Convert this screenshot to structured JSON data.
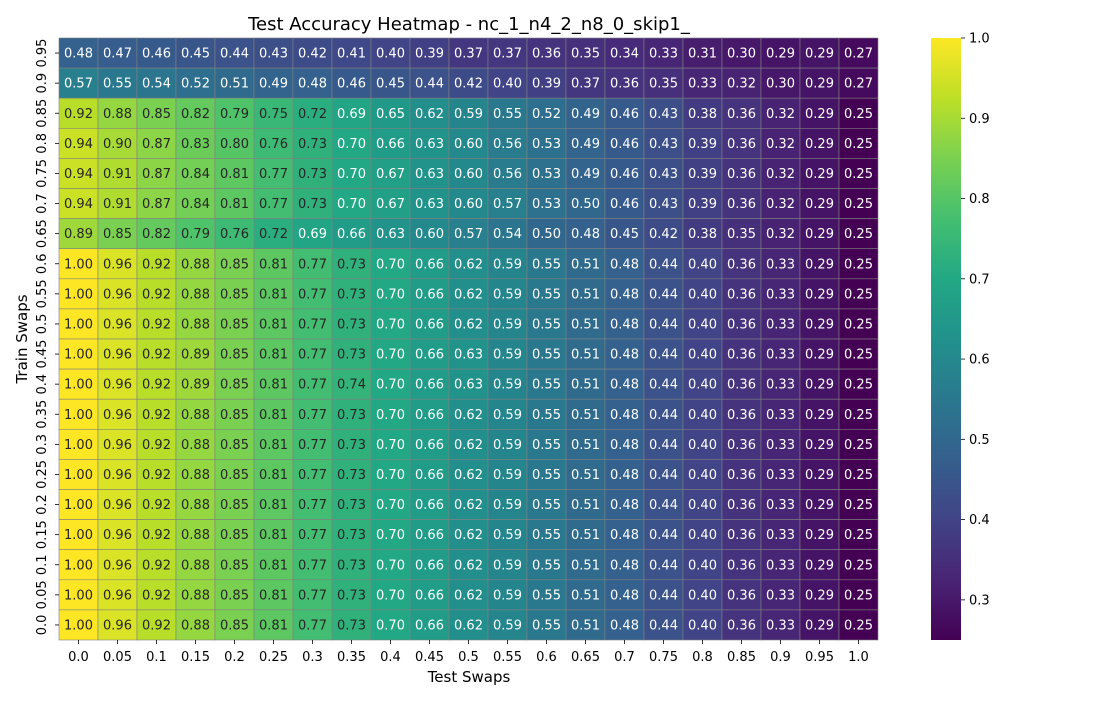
{
  "chart_data": {
    "type": "heatmap",
    "title": "Test Accuracy Heatmap - nc_1_n4_2_n8_0_skip1_",
    "xlabel": "Test Swaps",
    "ylabel": "Train Swaps",
    "x_categories": [
      "0.0",
      "0.05",
      "0.1",
      "0.15",
      "0.2",
      "0.25",
      "0.3",
      "0.35",
      "0.4",
      "0.45",
      "0.5",
      "0.55",
      "0.6",
      "0.65",
      "0.7",
      "0.75",
      "0.8",
      "0.85",
      "0.9",
      "0.95",
      "1.0"
    ],
    "y_categories": [
      "0.95",
      "0.9",
      "0.85",
      "0.8",
      "0.75",
      "0.7",
      "0.65",
      "0.6",
      "0.55",
      "0.5",
      "0.45",
      "0.4",
      "0.35",
      "0.3",
      "0.25",
      "0.2",
      "0.15",
      "0.1",
      "0.05",
      "0.0"
    ],
    "values": [
      [
        "0.48",
        "0.47",
        "0.46",
        "0.45",
        "0.44",
        "0.43",
        "0.42",
        "0.41",
        "0.40",
        "0.39",
        "0.37",
        "0.37",
        "0.36",
        "0.35",
        "0.34",
        "0.33",
        "0.31",
        "0.30",
        "0.29",
        "0.29",
        "0.27"
      ],
      [
        "0.57",
        "0.55",
        "0.54",
        "0.52",
        "0.51",
        "0.49",
        "0.48",
        "0.46",
        "0.45",
        "0.44",
        "0.42",
        "0.40",
        "0.39",
        "0.37",
        "0.36",
        "0.35",
        "0.33",
        "0.32",
        "0.30",
        "0.29",
        "0.27"
      ],
      [
        "0.92",
        "0.88",
        "0.85",
        "0.82",
        "0.79",
        "0.75",
        "0.72",
        "0.69",
        "0.65",
        "0.62",
        "0.59",
        "0.55",
        "0.52",
        "0.49",
        "0.46",
        "0.43",
        "0.38",
        "0.36",
        "0.32",
        "0.29",
        "0.25"
      ],
      [
        "0.94",
        "0.90",
        "0.87",
        "0.83",
        "0.80",
        "0.76",
        "0.73",
        "0.70",
        "0.66",
        "0.63",
        "0.60",
        "0.56",
        "0.53",
        "0.49",
        "0.46",
        "0.43",
        "0.39",
        "0.36",
        "0.32",
        "0.29",
        "0.25"
      ],
      [
        "0.94",
        "0.91",
        "0.87",
        "0.84",
        "0.81",
        "0.77",
        "0.73",
        "0.70",
        "0.67",
        "0.63",
        "0.60",
        "0.56",
        "0.53",
        "0.49",
        "0.46",
        "0.43",
        "0.39",
        "0.36",
        "0.32",
        "0.29",
        "0.25"
      ],
      [
        "0.94",
        "0.91",
        "0.87",
        "0.84",
        "0.81",
        "0.77",
        "0.73",
        "0.70",
        "0.67",
        "0.63",
        "0.60",
        "0.57",
        "0.53",
        "0.50",
        "0.46",
        "0.43",
        "0.39",
        "0.36",
        "0.32",
        "0.29",
        "0.25"
      ],
      [
        "0.89",
        "0.85",
        "0.82",
        "0.79",
        "0.76",
        "0.72",
        "0.69",
        "0.66",
        "0.63",
        "0.60",
        "0.57",
        "0.54",
        "0.50",
        "0.48",
        "0.45",
        "0.42",
        "0.38",
        "0.35",
        "0.32",
        "0.29",
        "0.25"
      ],
      [
        "1.00",
        "0.96",
        "0.92",
        "0.88",
        "0.85",
        "0.81",
        "0.77",
        "0.73",
        "0.70",
        "0.66",
        "0.62",
        "0.59",
        "0.55",
        "0.51",
        "0.48",
        "0.44",
        "0.40",
        "0.36",
        "0.33",
        "0.29",
        "0.25"
      ],
      [
        "1.00",
        "0.96",
        "0.92",
        "0.88",
        "0.85",
        "0.81",
        "0.77",
        "0.73",
        "0.70",
        "0.66",
        "0.62",
        "0.59",
        "0.55",
        "0.51",
        "0.48",
        "0.44",
        "0.40",
        "0.36",
        "0.33",
        "0.29",
        "0.25"
      ],
      [
        "1.00",
        "0.96",
        "0.92",
        "0.88",
        "0.85",
        "0.81",
        "0.77",
        "0.73",
        "0.70",
        "0.66",
        "0.62",
        "0.59",
        "0.55",
        "0.51",
        "0.48",
        "0.44",
        "0.40",
        "0.36",
        "0.33",
        "0.29",
        "0.25"
      ],
      [
        "1.00",
        "0.96",
        "0.92",
        "0.89",
        "0.85",
        "0.81",
        "0.77",
        "0.73",
        "0.70",
        "0.66",
        "0.63",
        "0.59",
        "0.55",
        "0.51",
        "0.48",
        "0.44",
        "0.40",
        "0.36",
        "0.33",
        "0.29",
        "0.25"
      ],
      [
        "1.00",
        "0.96",
        "0.92",
        "0.89",
        "0.85",
        "0.81",
        "0.77",
        "0.74",
        "0.70",
        "0.66",
        "0.63",
        "0.59",
        "0.55",
        "0.51",
        "0.48",
        "0.44",
        "0.40",
        "0.36",
        "0.33",
        "0.29",
        "0.25"
      ],
      [
        "1.00",
        "0.96",
        "0.92",
        "0.88",
        "0.85",
        "0.81",
        "0.77",
        "0.73",
        "0.70",
        "0.66",
        "0.62",
        "0.59",
        "0.55",
        "0.51",
        "0.48",
        "0.44",
        "0.40",
        "0.36",
        "0.33",
        "0.29",
        "0.25"
      ],
      [
        "1.00",
        "0.96",
        "0.92",
        "0.88",
        "0.85",
        "0.81",
        "0.77",
        "0.73",
        "0.70",
        "0.66",
        "0.62",
        "0.59",
        "0.55",
        "0.51",
        "0.48",
        "0.44",
        "0.40",
        "0.36",
        "0.33",
        "0.29",
        "0.25"
      ],
      [
        "1.00",
        "0.96",
        "0.92",
        "0.88",
        "0.85",
        "0.81",
        "0.77",
        "0.73",
        "0.70",
        "0.66",
        "0.62",
        "0.59",
        "0.55",
        "0.51",
        "0.48",
        "0.44",
        "0.40",
        "0.36",
        "0.33",
        "0.29",
        "0.25"
      ],
      [
        "1.00",
        "0.96",
        "0.92",
        "0.88",
        "0.85",
        "0.81",
        "0.77",
        "0.73",
        "0.70",
        "0.66",
        "0.62",
        "0.59",
        "0.55",
        "0.51",
        "0.48",
        "0.44",
        "0.40",
        "0.36",
        "0.33",
        "0.29",
        "0.25"
      ],
      [
        "1.00",
        "0.96",
        "0.92",
        "0.88",
        "0.85",
        "0.81",
        "0.77",
        "0.73",
        "0.70",
        "0.66",
        "0.62",
        "0.59",
        "0.55",
        "0.51",
        "0.48",
        "0.44",
        "0.40",
        "0.36",
        "0.33",
        "0.29",
        "0.25"
      ],
      [
        "1.00",
        "0.96",
        "0.92",
        "0.88",
        "0.85",
        "0.81",
        "0.77",
        "0.73",
        "0.70",
        "0.66",
        "0.62",
        "0.59",
        "0.55",
        "0.51",
        "0.48",
        "0.44",
        "0.40",
        "0.36",
        "0.33",
        "0.29",
        "0.25"
      ],
      [
        "1.00",
        "0.96",
        "0.92",
        "0.88",
        "0.85",
        "0.81",
        "0.77",
        "0.73",
        "0.70",
        "0.66",
        "0.62",
        "0.59",
        "0.55",
        "0.51",
        "0.48",
        "0.44",
        "0.40",
        "0.36",
        "0.33",
        "0.29",
        "0.25"
      ],
      [
        "1.00",
        "0.96",
        "0.92",
        "0.88",
        "0.85",
        "0.81",
        "0.77",
        "0.73",
        "0.70",
        "0.66",
        "0.62",
        "0.59",
        "0.55",
        "0.51",
        "0.48",
        "0.44",
        "0.40",
        "0.36",
        "0.33",
        "0.29",
        "0.25"
      ]
    ],
    "colormap": "viridis",
    "colorbar": {
      "range": [
        0.25,
        1.0
      ],
      "ticks": [
        "0.3",
        "0.4",
        "0.5",
        "0.6",
        "0.7",
        "0.8",
        "0.9",
        "1.0"
      ]
    },
    "cell_border_color": "#808080",
    "legend": "none",
    "grid": false
  }
}
